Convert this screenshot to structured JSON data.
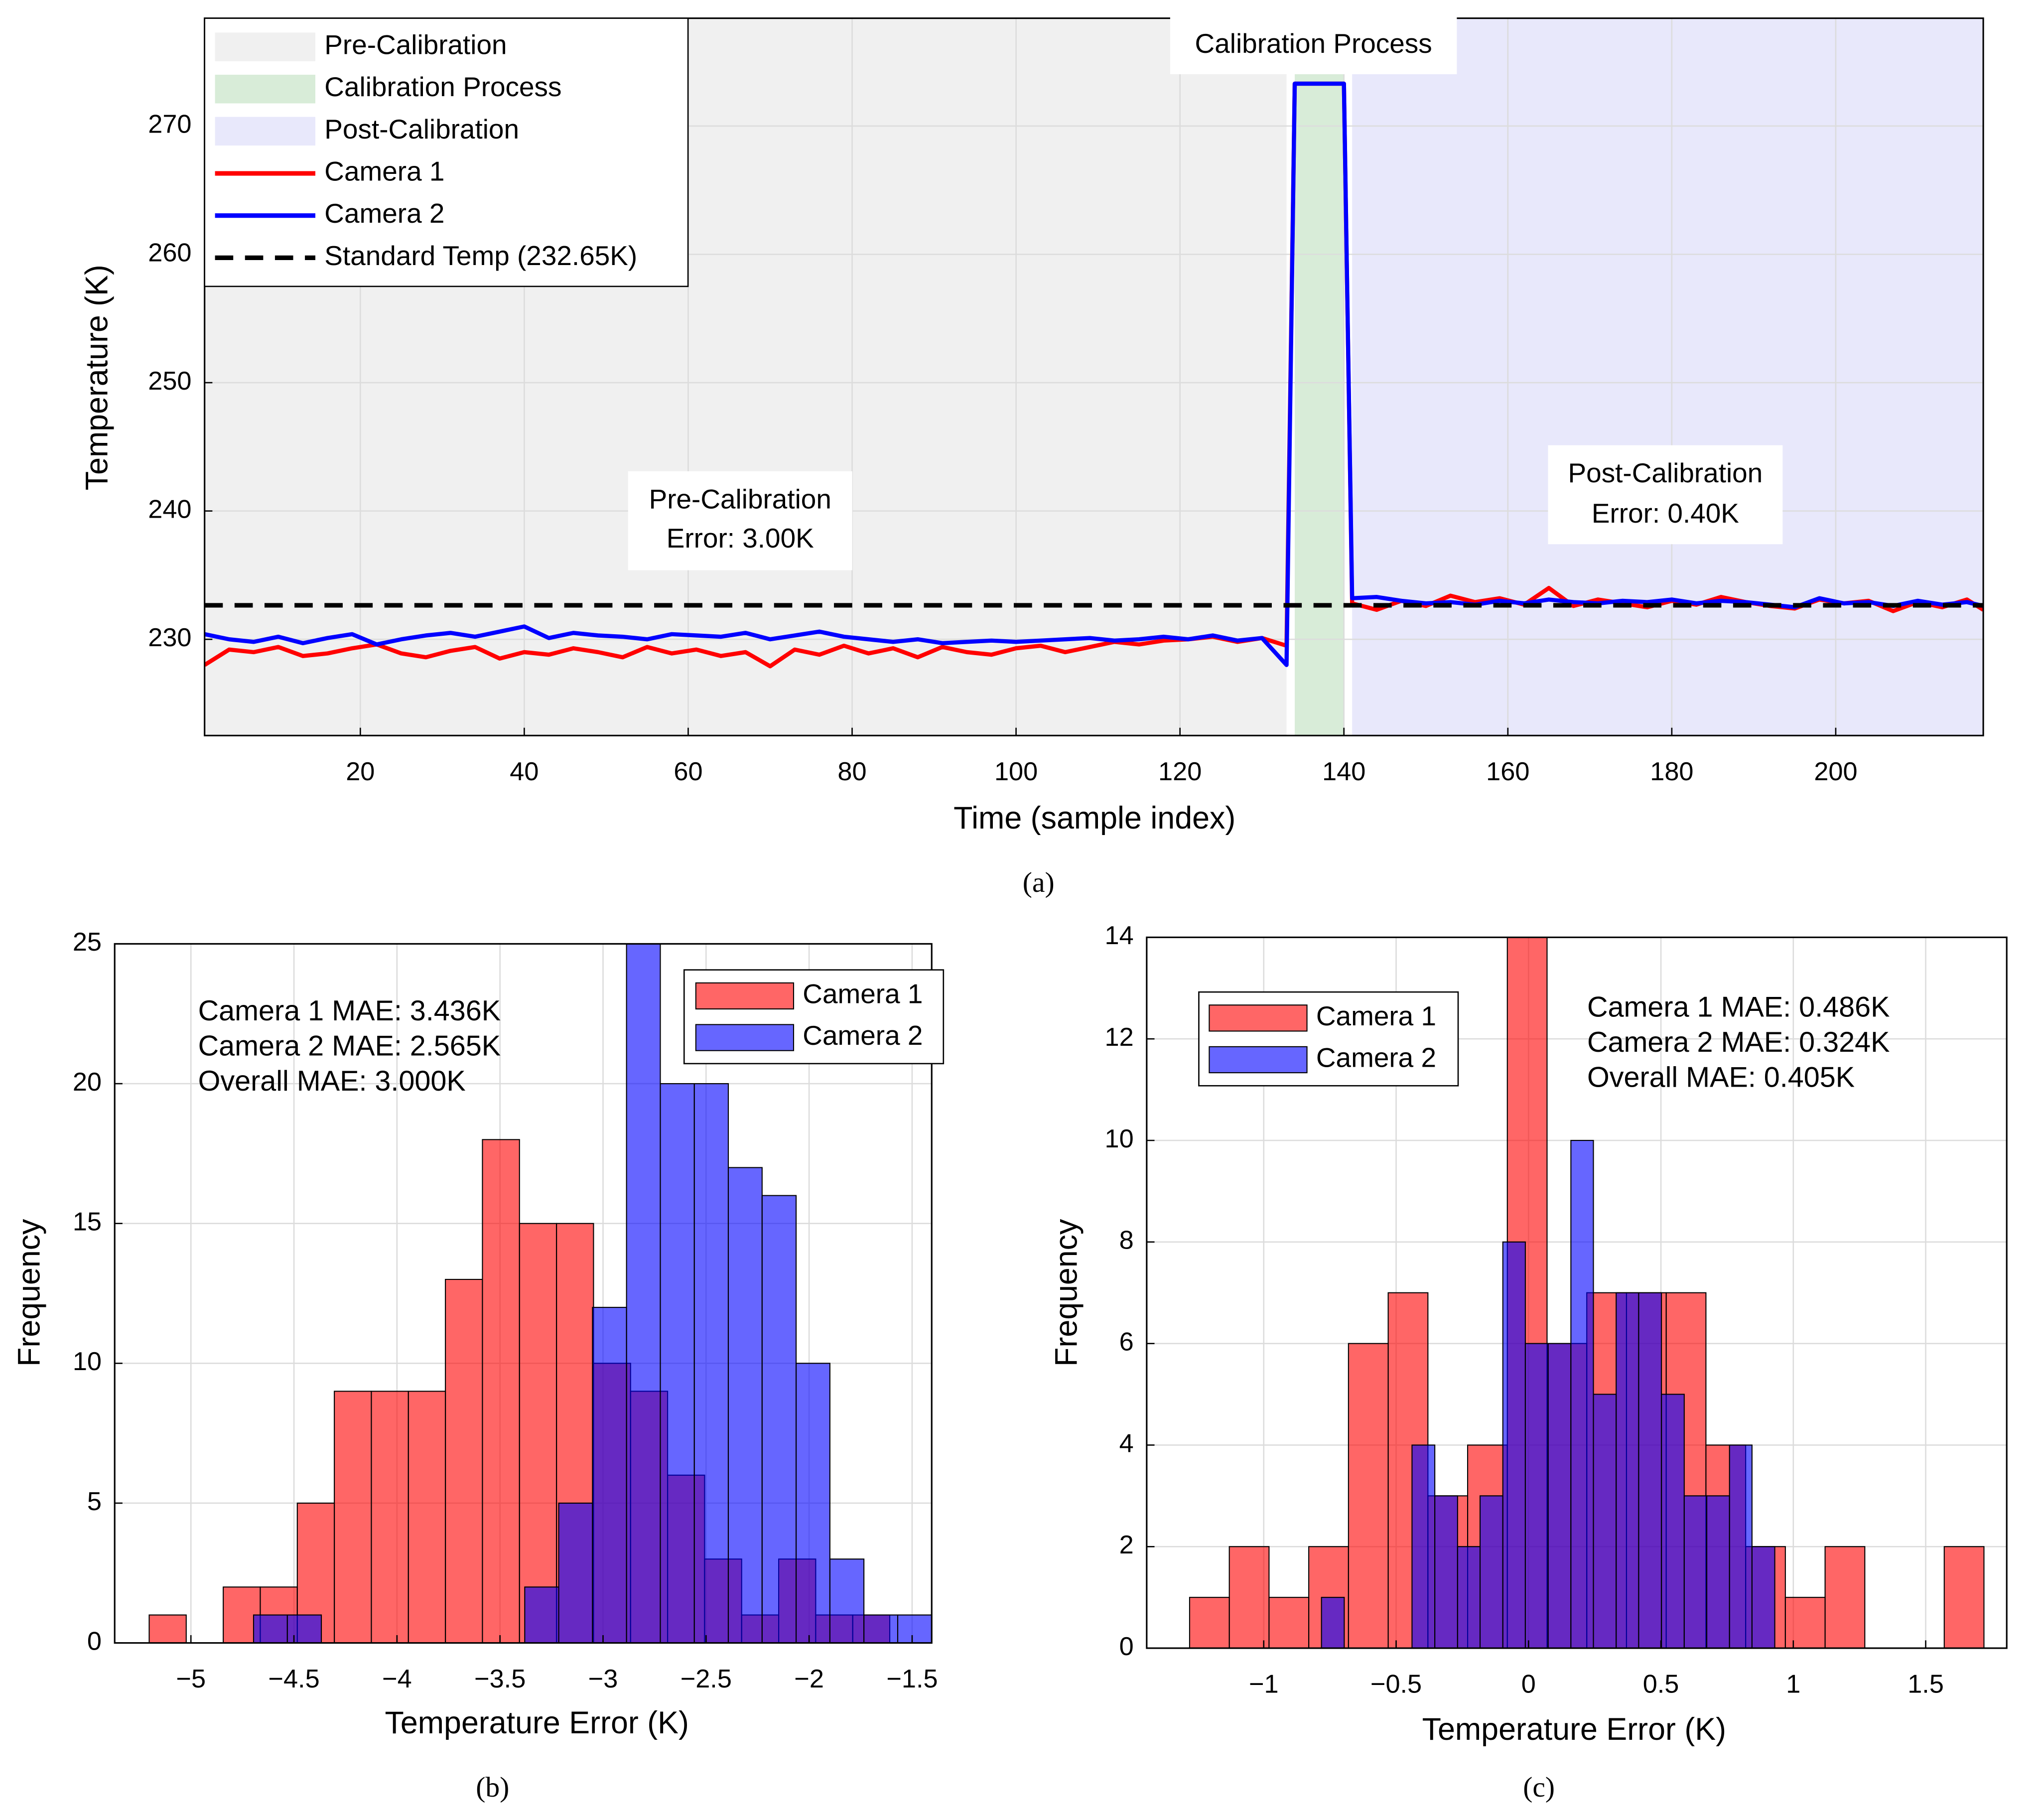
{
  "chart_data": [
    {
      "type": "line",
      "xlabel": "Time (sample index)",
      "ylabel": "Temperature (K)",
      "caption": "(a)",
      "xlim": [
        1,
        218
      ],
      "ylim": [
        222.5,
        278.4
      ],
      "xticks": [
        20,
        40,
        60,
        80,
        100,
        120,
        140,
        160,
        180,
        200
      ],
      "yticks": [
        230,
        240,
        250,
        260,
        270
      ],
      "grid": true,
      "legend": "upper left",
      "regions": [
        {
          "name": "Pre-Calibration",
          "color": "#f0f0f0",
          "xlim": [
            1,
            133
          ]
        },
        {
          "name": "Calibration Process",
          "color": "#d8ecd8",
          "xlim": [
            134,
            140
          ]
        },
        {
          "name": "Post-Calibration",
          "color": "#e8e8fb",
          "xlim": [
            141,
            218
          ]
        }
      ],
      "x": [
        1,
        4,
        7,
        10,
        13,
        16,
        19,
        22,
        25,
        28,
        31,
        34,
        37,
        40,
        43,
        46,
        49,
        52,
        55,
        58,
        61,
        64,
        67,
        70,
        73,
        76,
        79,
        82,
        85,
        88,
        91,
        94,
        97,
        100,
        103,
        106,
        109,
        112,
        115,
        118,
        121,
        124,
        127,
        130,
        133,
        134,
        140,
        141,
        144,
        147,
        150,
        153,
        156,
        159,
        162,
        165,
        168,
        171,
        174,
        177,
        180,
        183,
        186,
        189,
        192,
        195,
        198,
        201,
        204,
        207,
        210,
        213,
        216,
        218
      ],
      "series": [
        {
          "name": "Camera 1",
          "color": "#ff0000",
          "values": [
            228.0,
            229.2,
            229.0,
            229.4,
            228.7,
            228.9,
            229.3,
            229.6,
            228.9,
            228.6,
            229.1,
            229.4,
            228.5,
            229.0,
            228.8,
            229.3,
            229.0,
            228.6,
            229.4,
            228.9,
            229.2,
            228.7,
            229.0,
            227.9,
            229.2,
            228.8,
            229.5,
            228.9,
            229.3,
            228.6,
            229.4,
            229.0,
            228.8,
            229.3,
            229.5,
            229.0,
            229.4,
            229.8,
            229.6,
            229.9,
            230.0,
            230.2,
            229.8,
            230.1,
            229.5,
            273.3,
            273.3,
            232.8,
            232.3,
            233.0,
            232.6,
            233.4,
            232.9,
            233.2,
            232.7,
            234.0,
            232.6,
            233.1,
            232.8,
            232.5,
            233.0,
            232.7,
            233.3,
            232.9,
            232.6,
            232.4,
            233.1,
            232.8,
            233.0,
            232.2,
            232.9,
            232.5,
            233.1,
            232.3
          ]
        },
        {
          "name": "Camera 2",
          "color": "#0000ff",
          "values": [
            230.4,
            230.0,
            229.8,
            230.2,
            229.7,
            230.1,
            230.4,
            229.6,
            230.0,
            230.3,
            230.5,
            230.2,
            230.6,
            231.0,
            230.1,
            230.5,
            230.3,
            230.2,
            230.0,
            230.4,
            230.3,
            230.2,
            230.5,
            230.0,
            230.3,
            230.6,
            230.2,
            230.0,
            229.8,
            230.0,
            229.7,
            229.8,
            229.9,
            229.8,
            229.9,
            230.0,
            230.1,
            229.9,
            230.0,
            230.2,
            230.0,
            230.3,
            229.9,
            230.1,
            228.0,
            273.3,
            273.3,
            233.2,
            233.3,
            233.0,
            232.8,
            232.9,
            232.7,
            233.0,
            232.8,
            233.1,
            232.9,
            232.8,
            233.0,
            232.9,
            233.1,
            232.8,
            233.0,
            232.9,
            232.7,
            232.5,
            233.2,
            232.8,
            232.9,
            232.6,
            233.0,
            232.7,
            232.9,
            232.6
          ]
        }
      ],
      "reference": {
        "name": "Standard Temp (232.65K)",
        "value": 232.65,
        "color": "#000000"
      },
      "annotations": [
        [
          "Calibration Process"
        ],
        [
          "Pre-Calibration",
          "Error: 3.00K"
        ],
        [
          "Post-Calibration",
          "Error: 0.40K"
        ]
      ]
    },
    {
      "type": "histogram",
      "xlabel": "Temperature Error (K)",
      "ylabel": "Frequency",
      "caption": "(b)",
      "xlim": [
        -5.37,
        -1.405
      ],
      "ylim": [
        0,
        25
      ],
      "xticks": [
        {
          "value": -5,
          "label": "−5"
        },
        {
          "value": -4.5,
          "label": "−4.5"
        },
        {
          "value": -4,
          "label": "−4"
        },
        {
          "value": -3.5,
          "label": "−3.5"
        },
        {
          "value": -3,
          "label": "−3"
        },
        {
          "value": -2.5,
          "label": "−2.5"
        },
        {
          "value": -2,
          "label": "−2"
        },
        {
          "value": -1.5,
          "label": "−1.5"
        }
      ],
      "yticks": [
        0,
        5,
        10,
        15,
        20,
        25
      ],
      "grid": true,
      "legend": "upper right",
      "alpha": 0.6,
      "series": [
        {
          "name": "Camera 1",
          "color": "#ff0000",
          "bins": [
            -5.2025,
            -5.0228,
            -4.8431,
            -4.6634,
            -4.4837,
            -4.304,
            -4.1243,
            -3.9446,
            -3.7649,
            -3.5852,
            -3.4055,
            -3.2258,
            -3.0461,
            -2.8664,
            -2.6867,
            -2.507,
            -2.3273,
            -2.1476,
            -1.9679,
            -1.7882,
            -1.6085
          ],
          "values": [
            1,
            0,
            2,
            2,
            5,
            9,
            9,
            9,
            13,
            18,
            15,
            15,
            10,
            9,
            6,
            3,
            1,
            3,
            1,
            1
          ]
        },
        {
          "name": "Camera 2",
          "color": "#0000ff",
          "bins": [
            -4.696,
            -4.532,
            -4.367,
            -4.203,
            -4.038,
            -3.873,
            -3.709,
            -3.544,
            -3.38,
            -3.215,
            -3.051,
            -2.886,
            -2.722,
            -2.557,
            -2.392,
            -2.228,
            -2.063,
            -1.899,
            -1.734,
            -1.57,
            -1.405
          ],
          "values": [
            1,
            1,
            0,
            0,
            0,
            0,
            0,
            0,
            2,
            5,
            12,
            25,
            20,
            20,
            17,
            16,
            10,
            3,
            1,
            1
          ]
        }
      ],
      "annotations": [
        {
          "text": "Camera 1 MAE: 3.436K",
          "color": "#ff0000"
        },
        {
          "text": "Camera 2 MAE: 2.565K",
          "color": "#0000ff"
        },
        {
          "text": "Overall MAE: 3.000K",
          "color": "#000000"
        }
      ]
    },
    {
      "type": "histogram",
      "xlabel": "Temperature Error (K)",
      "ylabel": "Frequency",
      "caption": "(c)",
      "xlim": [
        -1.442,
        1.806
      ],
      "ylim": [
        0,
        14
      ],
      "xticks": [
        {
          "value": -1,
          "label": "−1"
        },
        {
          "value": -0.5,
          "label": "−0.5"
        },
        0,
        0.5,
        1,
        1.5
      ],
      "yticks": [
        0,
        2,
        4,
        6,
        8,
        10,
        12,
        14
      ],
      "grid": true,
      "legend": "upper left",
      "alpha": 0.6,
      "series": [
        {
          "name": "Camera 1",
          "color": "#ff0000",
          "bins": [
            -1.28,
            -1.13,
            -0.98,
            -0.83,
            -0.68,
            -0.53,
            -0.38,
            -0.23,
            -0.08,
            0.07,
            0.22,
            0.37,
            0.52,
            0.67,
            0.82,
            0.97,
            1.12,
            1.27,
            1.42,
            1.57,
            1.72
          ],
          "values": [
            1,
            2,
            1,
            2,
            6,
            7,
            3,
            4,
            14,
            6,
            7,
            7,
            7,
            4,
            2,
            1,
            2,
            0,
            0,
            2
          ]
        },
        {
          "name": "Camera 2",
          "color": "#0000ff",
          "bins": [
            -0.782,
            -0.696,
            -0.611,
            -0.525,
            -0.44,
            -0.354,
            -0.268,
            -0.183,
            -0.097,
            -0.012,
            0.074,
            0.16,
            0.245,
            0.331,
            0.416,
            0.502,
            0.588,
            0.673,
            0.759,
            0.844,
            0.93
          ],
          "values": [
            1,
            0,
            0,
            0,
            4,
            3,
            2,
            3,
            8,
            6,
            6,
            10,
            5,
            7,
            7,
            5,
            3,
            3,
            4,
            2
          ]
        }
      ],
      "annotations": [
        {
          "text": "Camera 1 MAE: 0.486K",
          "color": "#ff0000"
        },
        {
          "text": "Camera 2 MAE: 0.324K",
          "color": "#0000ff"
        },
        {
          "text": "Overall MAE: 0.405K",
          "color": "#000000"
        }
      ]
    }
  ]
}
